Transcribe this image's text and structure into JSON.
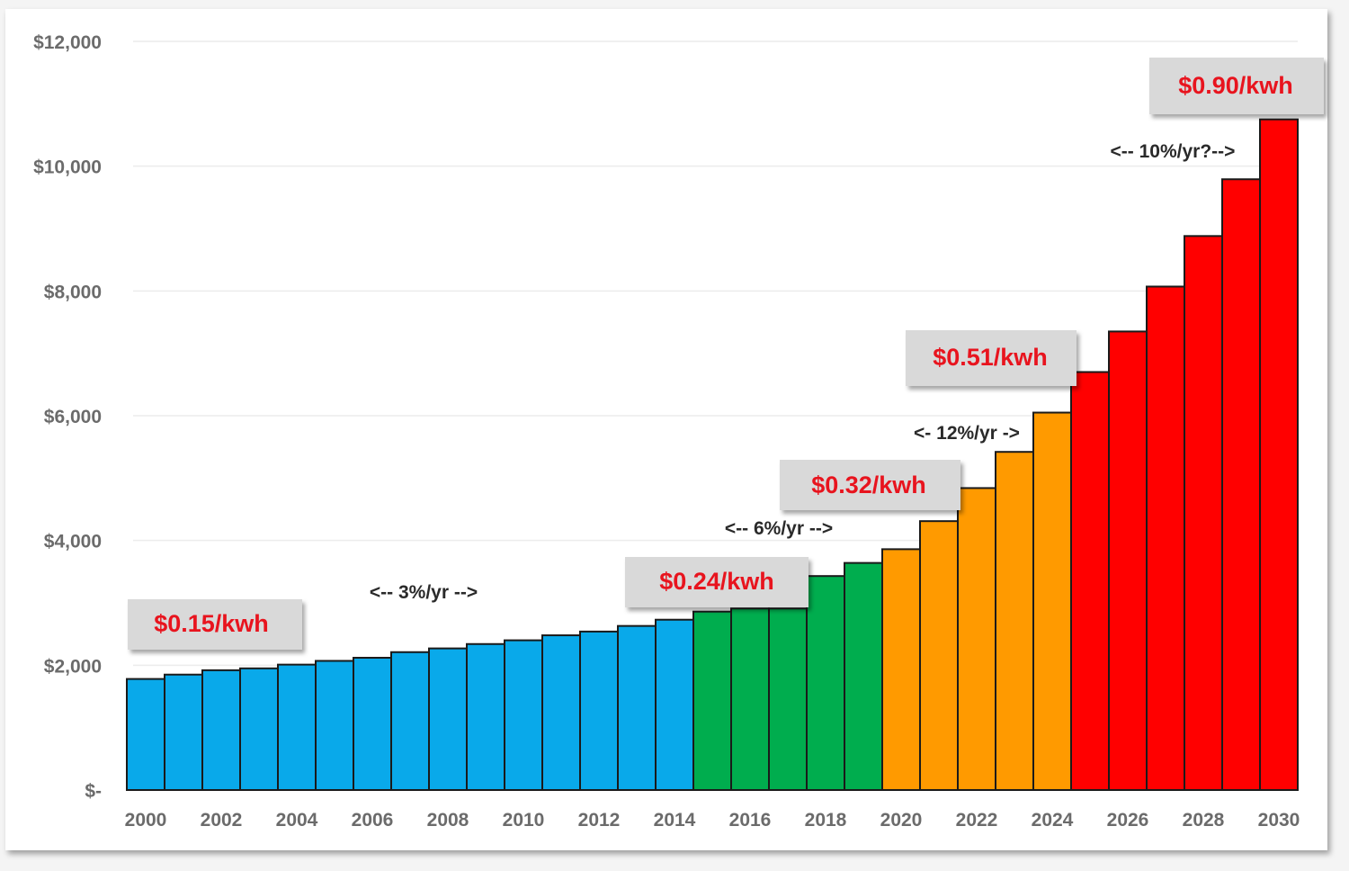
{
  "chart_data": {
    "type": "bar",
    "title": "",
    "xlabel": "",
    "ylabel": "",
    "ylim": [
      0,
      12000
    ],
    "grid": true,
    "yticks": [
      {
        "value": 0,
        "label": "$-"
      },
      {
        "value": 2000,
        "label": "$2,000"
      },
      {
        "value": 4000,
        "label": "$4,000"
      },
      {
        "value": 6000,
        "label": "$6,000"
      },
      {
        "value": 8000,
        "label": "$8,000"
      },
      {
        "value": 10000,
        "label": "$10,000"
      },
      {
        "value": 12000,
        "label": "$12,000"
      }
    ],
    "xtick_labels": [
      "2000",
      "2002",
      "2004",
      "2006",
      "2008",
      "2010",
      "2012",
      "2014",
      "2016",
      "2018",
      "2020",
      "2022",
      "2024",
      "2026",
      "2028",
      "2030"
    ],
    "categories": [
      "2000",
      "2001",
      "2002",
      "2003",
      "2004",
      "2005",
      "2006",
      "2007",
      "2008",
      "2009",
      "2010",
      "2011",
      "2012",
      "2013",
      "2014",
      "2015",
      "2016",
      "2017",
      "2018",
      "2019",
      "2020",
      "2021",
      "2022",
      "2023",
      "2024",
      "2025",
      "2026",
      "2027",
      "2028",
      "2029",
      "2030"
    ],
    "values": [
      1780,
      1850,
      1920,
      1950,
      2010,
      2070,
      2120,
      2210,
      2270,
      2340,
      2400,
      2480,
      2540,
      2630,
      2730,
      2860,
      2910,
      2910,
      3430,
      3640,
      3860,
      4310,
      4840,
      5420,
      6050,
      6700,
      7350,
      8070,
      8880,
      9790,
      10750
    ],
    "segments": [
      {
        "name": "3%/yr period",
        "from": "2000",
        "to": "2014",
        "color": "#09a9ea"
      },
      {
        "name": "6%/yr period",
        "from": "2015",
        "to": "2019",
        "color": "#00ad4e"
      },
      {
        "name": "12%/yr period",
        "from": "2020",
        "to": "2024",
        "color": "#ff9a00"
      },
      {
        "name": "10%/yr period",
        "from": "2025",
        "to": "2030",
        "color": "#ff0000"
      }
    ],
    "annotations": {
      "rates": [
        {
          "text": "<-- 3%/yr -->",
          "near": "2008"
        },
        {
          "text": "<-- 6%/yr -->",
          "near": "2017"
        },
        {
          "text": "<- 12%/yr ->",
          "near": "2022"
        },
        {
          "text": "<-- 10%/yr?-->",
          "near": "2027"
        }
      ],
      "prices": [
        {
          "text": "$0.15/kwh",
          "near": "2001"
        },
        {
          "text": "$0.24/kwh",
          "near": "2015"
        },
        {
          "text": "$0.32/kwh",
          "near": "2019"
        },
        {
          "text": "$0.51/kwh",
          "near": "2023"
        },
        {
          "text": "$0.90/kwh",
          "near": "2029"
        }
      ]
    }
  }
}
